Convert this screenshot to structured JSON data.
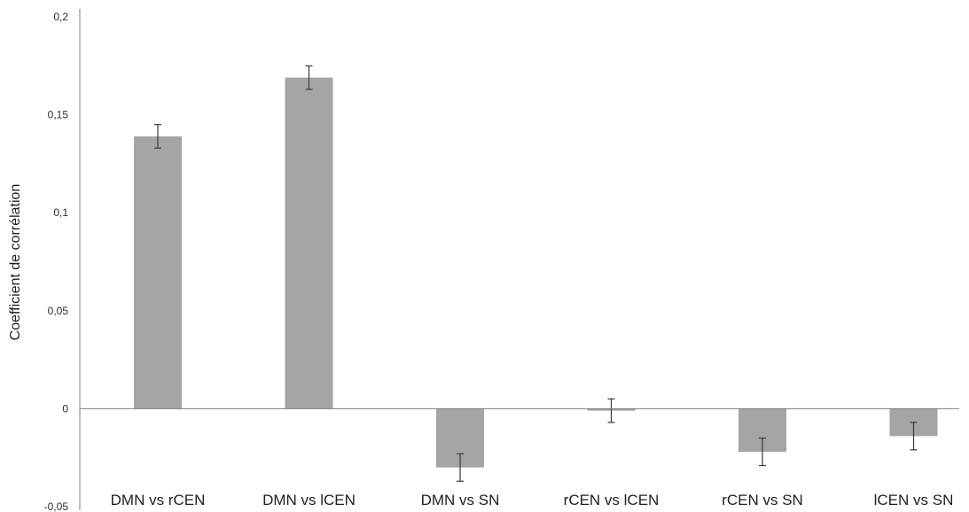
{
  "chart_data": {
    "type": "bar",
    "title": "",
    "xlabel": "",
    "ylabel": "Coefficient de corrélation",
    "ylim": [
      -0.05,
      0.2
    ],
    "yticks": [
      -0.05,
      0,
      0.05,
      0.1,
      0.15,
      0.2
    ],
    "ytick_labels": [
      "-0,05",
      "0",
      "0,05",
      "0,1",
      "0,15",
      "0,2"
    ],
    "categories": [
      "DMN vs rCEN",
      "DMN vs lCEN",
      "DMN vs SN",
      "rCEN vs lCEN",
      "rCEN vs SN",
      "lCEN vs SN"
    ],
    "values": [
      0.139,
      0.169,
      -0.03,
      -0.001,
      -0.022,
      -0.014
    ],
    "error": [
      0.006,
      0.006,
      0.007,
      0.006,
      0.007,
      0.007
    ],
    "grid": false,
    "bar_color": "#a3a5a7",
    "axis_color": "#7d7d7d",
    "error_color": "#3a3a3a"
  }
}
